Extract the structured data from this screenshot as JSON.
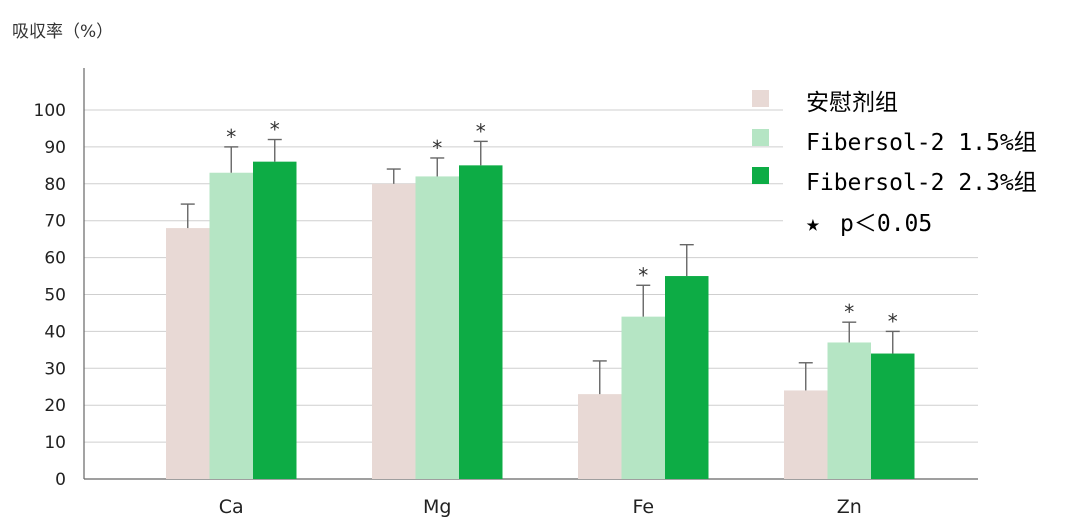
{
  "chart_data": {
    "type": "bar",
    "ylabel": "吸収率（%）",
    "ylim": [
      0,
      100
    ],
    "yticks": [
      0,
      10,
      20,
      30,
      40,
      50,
      60,
      70,
      80,
      90,
      100
    ],
    "grid": true,
    "legend_position": "top-right",
    "categories": [
      "Ca",
      "Mg",
      "Fe",
      "Zn"
    ],
    "series": [
      {
        "name": "安慰剂组",
        "values": [
          68,
          80,
          23,
          24
        ],
        "errors": [
          6.5,
          4,
          9,
          7.5
        ],
        "significant": [
          false,
          false,
          false,
          false
        ],
        "color": "#e8d9d5"
      },
      {
        "name": "Fibersol-2 1.5%组",
        "values": [
          83,
          82,
          44,
          37
        ],
        "errors": [
          7,
          5,
          8.5,
          5.5
        ],
        "significant": [
          true,
          true,
          true,
          true
        ],
        "color": "#b5e5c4"
      },
      {
        "name": "Fibersol-2 2.3%组",
        "values": [
          86,
          85,
          55,
          34
        ],
        "errors": [
          6,
          6.5,
          8.5,
          6
        ],
        "significant": [
          true,
          true,
          false,
          true
        ],
        "color": "#0dac45"
      }
    ],
    "significance_marker": "★",
    "significance_label": "p＜0.05"
  }
}
